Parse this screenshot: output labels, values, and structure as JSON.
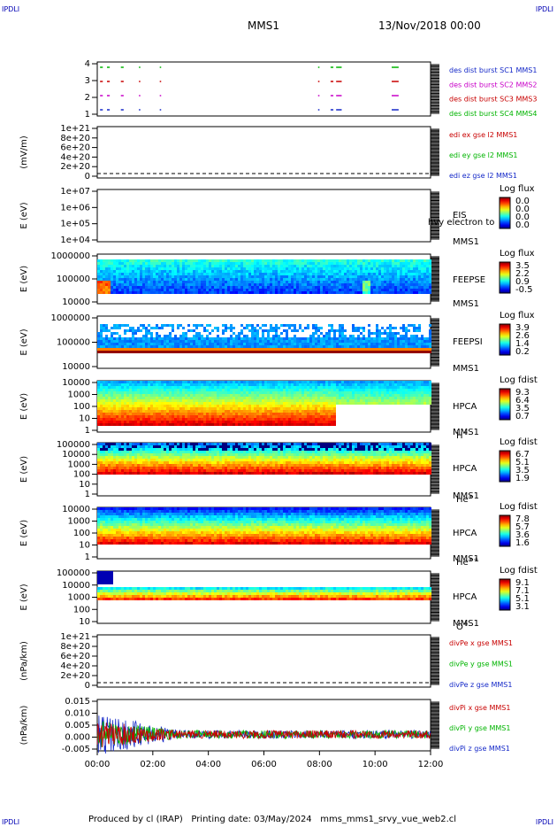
{
  "corners": {
    "tl": "IPDLI",
    "tr": "IPDLI",
    "bl": "IPDLI",
    "br": "IPDLI"
  },
  "header": {
    "mission": "MMS1",
    "date": "13/Nov/2018 00:00"
  },
  "footer": {
    "produced_by": "Produced by cl (IRAP)",
    "printing_date": "Printing date: 03/May/2024",
    "script": "mms_mms1_srvy_vue_web2.cl"
  },
  "colors": {
    "blue": "#1428c8",
    "red": "#c80000",
    "green": "#00b400",
    "magenta": "#c800c8"
  },
  "chart_data": [
    {
      "type": "line",
      "id": "burst",
      "yticks": [
        "4",
        "3",
        "2",
        "1"
      ],
      "series": [
        {
          "name": "des dist burst SC1 MMS1",
          "color": "#1428c8",
          "y": 1
        },
        {
          "name": "des dist burst SC2 MMS2",
          "color": "#c800c8",
          "y": 2
        },
        {
          "name": "des dist burst SC3 MMS3",
          "color": "#c80000",
          "y": 3
        },
        {
          "name": "des dist burst SC4 MMS4",
          "color": "#00b400",
          "y": 4
        }
      ],
      "intervals_hours": [
        [
          0.1,
          0.2
        ],
        [
          0.35,
          0.45
        ],
        [
          0.85,
          0.95
        ],
        [
          1.5,
          1.55
        ],
        [
          2.25,
          2.3
        ],
        [
          7.95,
          8.0
        ],
        [
          8.4,
          8.5
        ],
        [
          8.6,
          8.8
        ],
        [
          10.6,
          10.85
        ]
      ]
    },
    {
      "type": "line",
      "id": "edi",
      "ylabel": "(mV/m)",
      "yticks": [
        "1e+21",
        "8e+20",
        "6e+20",
        "4e+20",
        "2e+20",
        "0"
      ],
      "series": [
        {
          "name": "edi ex gse l2 MMS1",
          "color": "#c80000"
        },
        {
          "name": "edi ey gse l2 MMS1",
          "color": "#00b400"
        },
        {
          "name": "edi ez gse l2 MMS1",
          "color": "#1428c8"
        }
      ]
    },
    {
      "type": "heatmap",
      "id": "eis",
      "ylabel": "E (eV)",
      "yticks": [
        "1e+07",
        "1e+06",
        "1e+05",
        "1e+04"
      ],
      "labels": [
        "EIS",
        "hvy electron to",
        "MMS1"
      ],
      "colorbar": {
        "title": "Log flux",
        "ticks": [
          "0.0",
          "0.0",
          "0.0",
          "0.0"
        ]
      }
    },
    {
      "type": "heatmap",
      "id": "feepse",
      "ylabel": "E (eV)",
      "yticks": [
        "1000000",
        "100000",
        "10000"
      ],
      "labels": [
        "FEEPSE",
        "MMS1"
      ],
      "colorbar": {
        "title": "Log flux",
        "ticks": [
          "3.5",
          "2.2",
          "0.9",
          "-0.5"
        ]
      }
    },
    {
      "type": "heatmap",
      "id": "feepsi",
      "ylabel": "E (eV)",
      "yticks": [
        "1000000",
        "100000",
        "10000"
      ],
      "labels": [
        "FEEPSI",
        "MMS1"
      ],
      "colorbar": {
        "title": "Log flux",
        "ticks": [
          "3.9",
          "2.6",
          "1.4",
          "0.2"
        ]
      }
    },
    {
      "type": "heatmap",
      "id": "hpca-h",
      "ylabel": "E (eV)",
      "yticks": [
        "10000",
        "1000",
        "100",
        "10",
        "1"
      ],
      "labels": [
        "HPCA",
        "MMS1"
      ],
      "species": "H",
      "charge": "+",
      "colorbar": {
        "title": "Log fdist",
        "ticks": [
          "9.3",
          "6.4",
          "3.5",
          "0.7"
        ]
      }
    },
    {
      "type": "heatmap",
      "id": "hpca-he",
      "ylabel": "E (eV)",
      "yticks": [
        "100000",
        "10000",
        "1000",
        "100",
        "10",
        "1"
      ],
      "labels": [
        "HPCA",
        "MMS1"
      ],
      "species": "He",
      "charge": "+",
      "colorbar": {
        "title": "Log fdist",
        "ticks": [
          "6.7",
          "5.1",
          "3.5",
          "1.9"
        ]
      }
    },
    {
      "type": "heatmap",
      "id": "hpca-hepp",
      "ylabel": "E (eV)",
      "yticks": [
        "10000",
        "1000",
        "100",
        "10",
        "1"
      ],
      "labels": [
        "HPCA",
        "MMS1"
      ],
      "species": "He",
      "charge": "++",
      "colorbar": {
        "title": "Log fdist",
        "ticks": [
          "7.8",
          "5.7",
          "3.6",
          "1.6"
        ]
      }
    },
    {
      "type": "heatmap",
      "id": "hpca-o",
      "ylabel": "E (eV)",
      "yticks": [
        "100000",
        "10000",
        "1000",
        "100",
        "10"
      ],
      "labels": [
        "HPCA",
        "MMS1"
      ],
      "species": "O",
      "charge": "+",
      "colorbar": {
        "title": "Log fdist",
        "ticks": [
          "9.1",
          "7.1",
          "5.1",
          "3.1"
        ]
      }
    },
    {
      "type": "line",
      "id": "divpe",
      "ylabel": "(nPa/km)",
      "yticks": [
        "1e+21",
        "8e+20",
        "6e+20",
        "4e+20",
        "2e+20",
        "0"
      ],
      "series": [
        {
          "name": "divPe x gse MMS1",
          "color": "#c80000"
        },
        {
          "name": "divPe y gse MMS1",
          "color": "#00b400"
        },
        {
          "name": "divPe z gse MMS1",
          "color": "#1428c8"
        }
      ]
    },
    {
      "type": "line",
      "id": "divpi",
      "ylabel": "(nPa/km)",
      "yticks": [
        "0.015",
        "0.010",
        "0.005",
        "0.000",
        "-0.005"
      ],
      "ylim": [
        -0.008,
        0.017
      ],
      "series": [
        {
          "name": "divPi x gse MMS1",
          "color": "#c80000"
        },
        {
          "name": "divPi y gse MMS1",
          "color": "#00b400"
        },
        {
          "name": "divPi z gse MMS1",
          "color": "#1428c8"
        }
      ]
    }
  ],
  "xaxis": {
    "ticks": [
      "00:00",
      "02:00",
      "04:00",
      "06:00",
      "08:00",
      "10:00",
      "12:00"
    ],
    "range_hours": [
      0,
      12
    ]
  }
}
